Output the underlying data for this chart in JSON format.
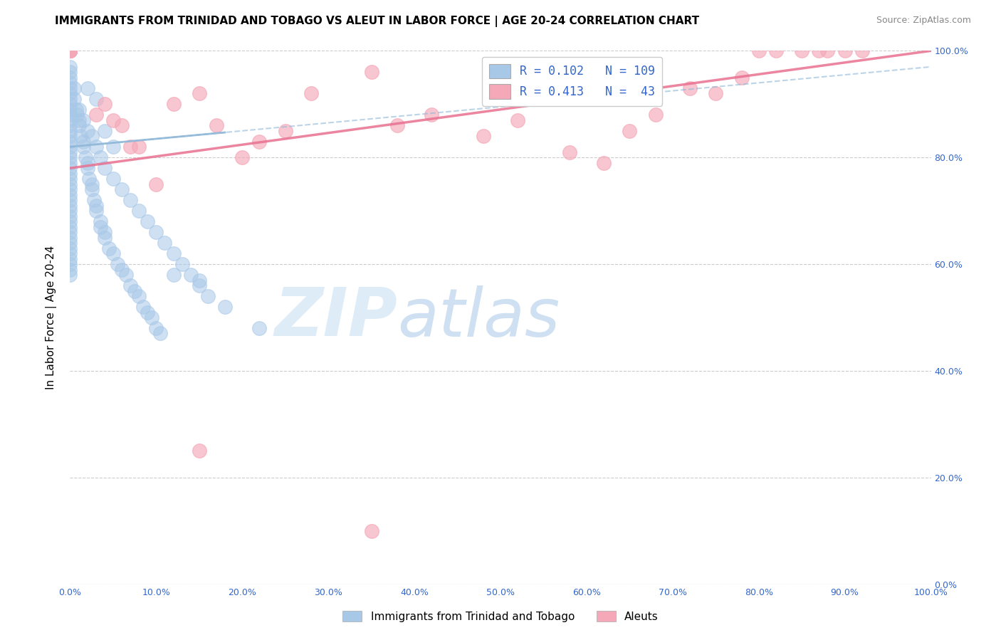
{
  "title": "IMMIGRANTS FROM TRINIDAD AND TOBAGO VS ALEUT IN LABOR FORCE | AGE 20-24 CORRELATION CHART",
  "source": "Source: ZipAtlas.com",
  "ylabel": "In Labor Force | Age 20-24",
  "xlim": [
    0.0,
    1.0
  ],
  "ylim": [
    0.0,
    1.0
  ],
  "legend_labels": [
    "Immigrants from Trinidad and Tobago",
    "Aleuts"
  ],
  "R_blue": 0.102,
  "N_blue": 109,
  "R_pink": 0.413,
  "N_pink": 43,
  "blue_color": "#a8c8e8",
  "pink_color": "#f4a8b8",
  "blue_line_color": "#90b8d8",
  "pink_line_color": "#e87090",
  "watermark_zip": "ZIP",
  "watermark_atlas": "atlas",
  "blue_x": [
    0.0,
    0.0,
    0.0,
    0.0,
    0.0,
    0.0,
    0.0,
    0.0,
    0.0,
    0.0,
    0.0,
    0.0,
    0.0,
    0.0,
    0.0,
    0.0,
    0.0,
    0.0,
    0.0,
    0.0,
    0.0,
    0.0,
    0.0,
    0.0,
    0.0,
    0.0,
    0.0,
    0.0,
    0.0,
    0.0,
    0.0,
    0.0,
    0.0,
    0.0,
    0.0,
    0.0,
    0.0,
    0.0,
    0.0,
    0.0,
    0.0,
    0.0,
    0.0,
    0.0,
    0.0,
    0.0,
    0.0,
    0.0,
    0.0,
    0.0,
    0.005,
    0.005,
    0.007,
    0.008,
    0.01,
    0.01,
    0.012,
    0.015,
    0.015,
    0.018,
    0.02,
    0.02,
    0.022,
    0.025,
    0.025,
    0.028,
    0.03,
    0.03,
    0.035,
    0.035,
    0.04,
    0.04,
    0.045,
    0.05,
    0.055,
    0.06,
    0.065,
    0.07,
    0.075,
    0.08,
    0.085,
    0.09,
    0.095,
    0.1,
    0.105,
    0.01,
    0.015,
    0.02,
    0.025,
    0.03,
    0.035,
    0.04,
    0.05,
    0.06,
    0.07,
    0.08,
    0.09,
    0.1,
    0.11,
    0.12,
    0.13,
    0.14,
    0.15,
    0.16,
    0.18,
    0.22,
    0.02,
    0.03,
    0.04,
    0.05,
    0.12,
    0.15
  ],
  "blue_y": [
    1.0,
    1.0,
    1.0,
    1.0,
    1.0,
    1.0,
    1.0,
    1.0,
    1.0,
    1.0,
    0.97,
    0.96,
    0.95,
    0.94,
    0.93,
    0.92,
    0.91,
    0.9,
    0.89,
    0.88,
    0.87,
    0.86,
    0.85,
    0.84,
    0.83,
    0.82,
    0.81,
    0.8,
    0.79,
    0.78,
    0.77,
    0.76,
    0.75,
    0.74,
    0.73,
    0.72,
    0.71,
    0.7,
    0.69,
    0.68,
    0.67,
    0.66,
    0.65,
    0.64,
    0.63,
    0.62,
    0.61,
    0.6,
    0.59,
    0.58,
    0.93,
    0.91,
    0.89,
    0.88,
    0.87,
    0.86,
    0.84,
    0.83,
    0.82,
    0.8,
    0.79,
    0.78,
    0.76,
    0.75,
    0.74,
    0.72,
    0.71,
    0.7,
    0.68,
    0.67,
    0.66,
    0.65,
    0.63,
    0.62,
    0.6,
    0.59,
    0.58,
    0.56,
    0.55,
    0.54,
    0.52,
    0.51,
    0.5,
    0.48,
    0.47,
    0.89,
    0.87,
    0.85,
    0.84,
    0.82,
    0.8,
    0.78,
    0.76,
    0.74,
    0.72,
    0.7,
    0.68,
    0.66,
    0.64,
    0.62,
    0.6,
    0.58,
    0.56,
    0.54,
    0.52,
    0.48,
    0.93,
    0.91,
    0.85,
    0.82,
    0.58,
    0.57
  ],
  "pink_x": [
    0.0,
    0.0,
    0.0,
    0.0,
    0.0,
    0.0,
    0.0,
    0.0,
    0.0,
    0.0,
    0.03,
    0.04,
    0.05,
    0.06,
    0.07,
    0.08,
    0.1,
    0.12,
    0.15,
    0.17,
    0.2,
    0.22,
    0.25,
    0.28,
    0.35,
    0.38,
    0.42,
    0.48,
    0.52,
    0.58,
    0.62,
    0.65,
    0.68,
    0.72,
    0.75,
    0.78,
    0.8,
    0.82,
    0.85,
    0.87,
    0.88,
    0.9,
    0.92,
    0.15
  ],
  "pink_y": [
    1.0,
    1.0,
    1.0,
    1.0,
    1.0,
    1.0,
    1.0,
    1.0,
    1.0,
    1.0,
    0.88,
    0.9,
    0.87,
    0.86,
    0.82,
    0.82,
    0.75,
    0.9,
    0.92,
    0.86,
    0.8,
    0.83,
    0.85,
    0.92,
    0.96,
    0.86,
    0.88,
    0.84,
    0.87,
    0.81,
    0.79,
    0.85,
    0.88,
    0.93,
    0.92,
    0.95,
    1.0,
    1.0,
    1.0,
    1.0,
    1.0,
    1.0,
    1.0,
    0.25
  ],
  "pink_low_x": [
    0.35
  ],
  "pink_low_y": [
    0.1
  ],
  "blue_line_x0": 0.0,
  "blue_line_y0": 0.82,
  "blue_line_x1": 0.18,
  "blue_line_y1": 0.84,
  "pink_line_x0": 0.0,
  "pink_line_y0": 0.78,
  "pink_line_x1": 1.0,
  "pink_line_y1": 1.0
}
